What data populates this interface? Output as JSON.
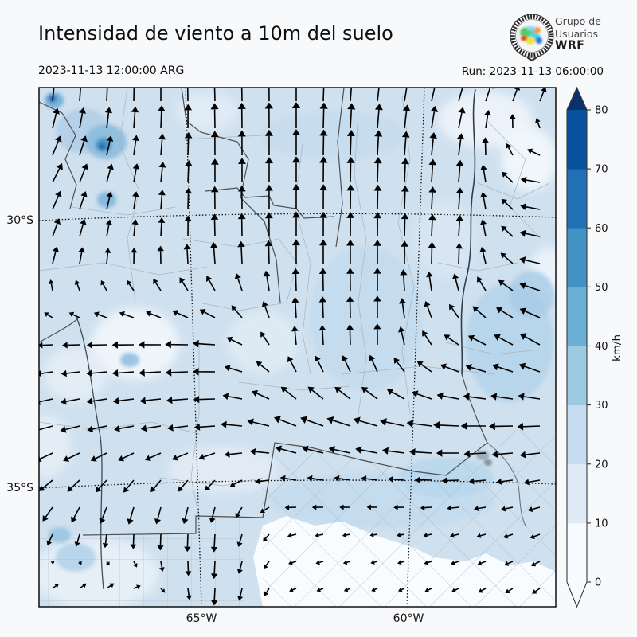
{
  "header": {
    "title": "Intensidad de viento a 10m del suelo",
    "valid_time": "2023-11-13 12:00:00 ARG",
    "run_label": "Run: 2023-11-13 06:00:00"
  },
  "logo": {
    "line1": "Grupo de",
    "line2": "Usuarios",
    "line3": "WRF"
  },
  "map_labels": {
    "lat1": "30°S",
    "lat2": "35°S",
    "lon1": "65°W",
    "lon2": "60°W"
  },
  "colorbar": {
    "units": "km/h",
    "ticks": [
      "0",
      "10",
      "20",
      "30",
      "40",
      "50",
      "60",
      "70",
      "80"
    ],
    "segment_colors": [
      "#f7fbff",
      "#deebf7",
      "#c6dbef",
      "#9ecae1",
      "#6baed6",
      "#4292c6",
      "#2171b5",
      "#08519c"
    ],
    "over_color": "#08306b",
    "under_color": "#f7fbff"
  },
  "palette": {
    "background": "#f8f9fb",
    "map_base": "#cfe0ef",
    "arrow_color": "#000000",
    "border_color": "#4f4f4f",
    "river_color": "#2f3e4d"
  },
  "wind_field": {
    "cols": [
      49,
      157,
      265,
      373,
      481,
      590,
      698
    ],
    "rows": [
      110,
      219,
      327,
      436,
      544,
      653,
      762
    ],
    "angles": [
      [
        88,
        90,
        92,
        90,
        82,
        70,
        55
      ],
      [
        60,
        78,
        90,
        90,
        88,
        85,
        183
      ],
      [
        72,
        85,
        92,
        90,
        90,
        86,
        178
      ],
      [
        185,
        182,
        180,
        95,
        90,
        155,
        150
      ],
      [
        197,
        192,
        186,
        162,
        168,
        181,
        186
      ],
      [
        238,
        262,
        268,
        190,
        186,
        190,
        200
      ],
      [
        45,
        48,
        268,
        205,
        208,
        212,
        220
      ]
    ],
    "lengths": [
      [
        26,
        30,
        33,
        33,
        30,
        26,
        24
      ],
      [
        28,
        24,
        30,
        33,
        32,
        28,
        30
      ],
      [
        24,
        20,
        28,
        31,
        30,
        26,
        32
      ],
      [
        18,
        28,
        30,
        24,
        27,
        24,
        30
      ],
      [
        26,
        25,
        26,
        32,
        34,
        33,
        28
      ],
      [
        22,
        25,
        24,
        12,
        10,
        12,
        14
      ],
      [
        18,
        20,
        22,
        9,
        8,
        10,
        12
      ]
    ]
  }
}
